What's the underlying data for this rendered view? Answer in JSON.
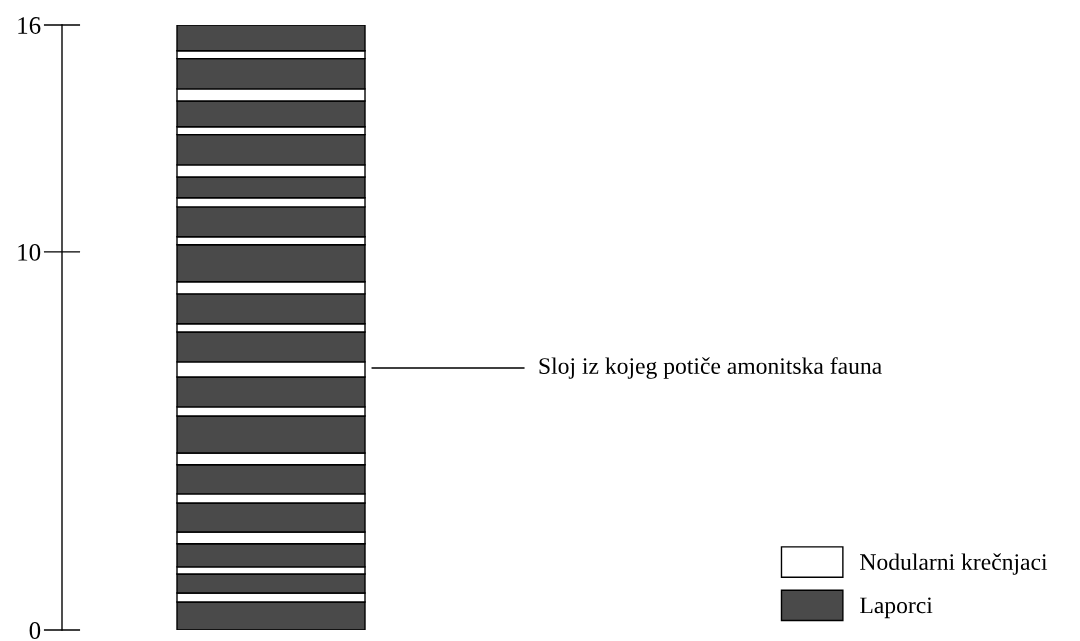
{
  "chart_data": {
    "type": "bar",
    "stacked": true,
    "categories": [
      null
    ],
    "tick_labels": "y",
    "ylim": [
      0,
      16
    ],
    "yticks": [
      0,
      10,
      16
    ],
    "grid": false,
    "legend": "bottom right",
    "annotations": [
      "Sloj iz kojeg potiče amonitska fauna"
    ],
    "series": [
      {
        "name": "Laporci",
        "color": "#4a4a4a",
        "values": [
          0.74
        ]
      },
      {
        "name": "Nodularni krečnjaci",
        "color": "#ffffff",
        "values": [
          0.24
        ]
      },
      {
        "color": "#4a4a4a",
        "values": [
          0.5
        ]
      },
      {
        "color": "#ffffff",
        "values": [
          0.19
        ]
      },
      {
        "color": "#4a4a4a",
        "values": [
          0.61
        ]
      },
      {
        "color": "#ffffff",
        "values": [
          0.31
        ]
      },
      {
        "color": "#4a4a4a",
        "values": [
          0.77
        ]
      },
      {
        "color": "#ffffff",
        "values": [
          0.24
        ]
      },
      {
        "color": "#4a4a4a",
        "values": [
          0.77
        ]
      },
      {
        "color": "#ffffff",
        "values": [
          0.31
        ]
      },
      {
        "color": "#4a4a4a",
        "values": [
          0.98
        ]
      },
      {
        "color": "#ffffff",
        "values": [
          0.24
        ]
      },
      {
        "color": "#4a4a4a",
        "values": [
          0.79
        ]
      },
      {
        "color": "#ffffff",
        "values": [
          0.4
        ]
      },
      {
        "color": "#4a4a4a",
        "values": [
          0.79
        ]
      },
      {
        "color": "#ffffff",
        "values": [
          0.22
        ]
      },
      {
        "color": "#4a4a4a",
        "values": [
          0.79
        ]
      },
      {
        "color": "#ffffff",
        "values": [
          0.32
        ]
      },
      {
        "color": "#4a4a4a",
        "values": [
          0.98
        ]
      },
      {
        "color": "#ffffff",
        "values": [
          0.21
        ]
      },
      {
        "color": "#4a4a4a",
        "values": [
          0.79
        ]
      },
      {
        "color": "#ffffff",
        "values": [
          0.24
        ]
      },
      {
        "color": "#4a4a4a",
        "values": [
          0.55
        ]
      },
      {
        "color": "#ffffff",
        "values": [
          0.32
        ]
      },
      {
        "color": "#4a4a4a",
        "values": [
          0.8
        ]
      },
      {
        "color": "#ffffff",
        "values": [
          0.21
        ]
      },
      {
        "color": "#4a4a4a",
        "values": [
          0.68
        ]
      },
      {
        "color": "#ffffff",
        "values": [
          0.32
        ]
      },
      {
        "color": "#4a4a4a",
        "values": [
          0.8
        ]
      },
      {
        "color": "#ffffff",
        "values": [
          0.21
        ]
      },
      {
        "color": "#4a4a4a",
        "values": [
          0.68
        ]
      }
    ]
  }
}
